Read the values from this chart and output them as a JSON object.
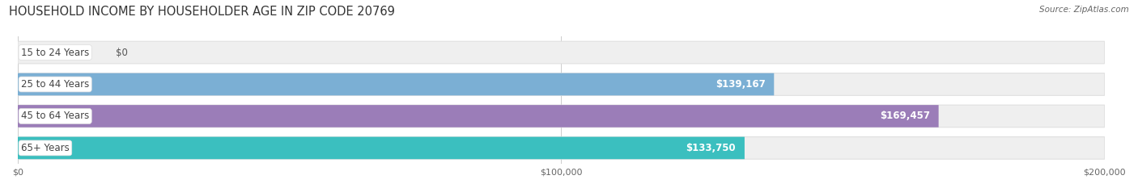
{
  "title": "HOUSEHOLD INCOME BY HOUSEHOLDER AGE IN ZIP CODE 20769",
  "source": "Source: ZipAtlas.com",
  "categories": [
    "15 to 24 Years",
    "25 to 44 Years",
    "45 to 64 Years",
    "65+ Years"
  ],
  "values": [
    0,
    139167,
    169457,
    133750
  ],
  "bar_colors": [
    "#f08080",
    "#7bafd4",
    "#9b7db8",
    "#3bbfbf"
  ],
  "bar_bg_color": "#efefef",
  "bar_border_color": "#e0e0e0",
  "value_labels": [
    "$0",
    "$139,167",
    "$169,457",
    "$133,750"
  ],
  "x_ticks": [
    0,
    100000,
    200000
  ],
  "x_tick_labels": [
    "$0",
    "$100,000",
    "$200,000"
  ],
  "xlim": [
    0,
    200000
  ],
  "figsize": [
    14.06,
    2.33
  ],
  "dpi": 100,
  "title_fontsize": 10.5,
  "label_fontsize": 8.5,
  "tick_fontsize": 8,
  "source_fontsize": 7.5
}
